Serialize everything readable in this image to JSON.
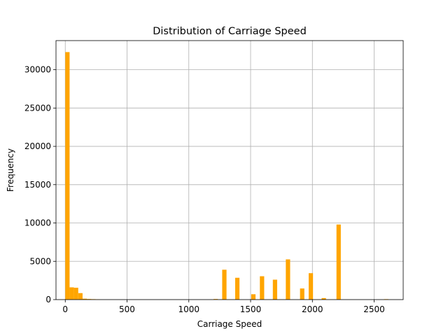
{
  "chart_data": {
    "type": "bar",
    "subtype": "histogram",
    "title": "Distribution of Carriage Speed",
    "xlabel": "Carriage Speed",
    "ylabel": "Frequency",
    "xlim": [
      -75,
      2735
    ],
    "ylim": [
      0,
      33800
    ],
    "xticks": [
      0,
      500,
      1000,
      1500,
      2000,
      2500
    ],
    "yticks": [
      0,
      5000,
      10000,
      15000,
      20000,
      25000,
      30000
    ],
    "grid": true,
    "bar_color": "#FFA500",
    "bin_width": 35,
    "bins": [
      {
        "x0": 0,
        "count": 32300
      },
      {
        "x0": 35,
        "count": 1600
      },
      {
        "x0": 70,
        "count": 1550
      },
      {
        "x0": 105,
        "count": 850
      },
      {
        "x0": 140,
        "count": 120
      },
      {
        "x0": 175,
        "count": 80
      },
      {
        "x0": 210,
        "count": 60
      },
      {
        "x0": 245,
        "count": 40
      },
      {
        "x0": 1200,
        "count": 80
      },
      {
        "x0": 1270,
        "count": 3900
      },
      {
        "x0": 1375,
        "count": 2850
      },
      {
        "x0": 1505,
        "count": 700
      },
      {
        "x0": 1575,
        "count": 3050
      },
      {
        "x0": 1680,
        "count": 2600
      },
      {
        "x0": 1785,
        "count": 5250
      },
      {
        "x0": 1900,
        "count": 1450
      },
      {
        "x0": 1970,
        "count": 3450
      },
      {
        "x0": 2075,
        "count": 200
      },
      {
        "x0": 2195,
        "count": 9800
      },
      {
        "x0": 2580,
        "count": 60
      }
    ]
  }
}
